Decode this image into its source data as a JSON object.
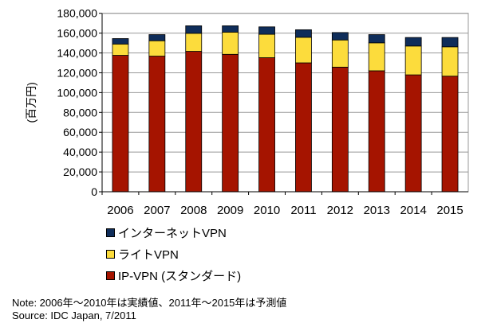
{
  "chart_data": {
    "type": "bar",
    "stacked": true,
    "categories": [
      "2006",
      "2007",
      "2008",
      "2009",
      "2010",
      "2011",
      "2012",
      "2013",
      "2014",
      "2015"
    ],
    "series": [
      {
        "name": "IP-VPN (スタンダード)",
        "color": "#A51400",
        "values": [
          137600,
          136800,
          141600,
          138600,
          135200,
          130000,
          125700,
          122000,
          117900,
          116600
        ]
      },
      {
        "name": "ライトVPN",
        "color": "#FCDC3C",
        "values": [
          11400,
          15500,
          18200,
          22400,
          23600,
          25800,
          27400,
          28200,
          29100,
          29600
        ]
      },
      {
        "name": "インターネットVPN",
        "color": "#0F2D5A",
        "values": [
          5500,
          6200,
          7600,
          6400,
          7500,
          7600,
          7500,
          8300,
          8600,
          9400
        ]
      }
    ],
    "ylabel": "(百万円)",
    "ylim": [
      0,
      180000
    ],
    "yticks": [
      "0",
      "20,000",
      "40,000",
      "60,000",
      "80,000",
      "100,000",
      "120,000",
      "140,000",
      "160,000",
      "180,000"
    ],
    "grid": true,
    "legend_placement": "bottom-left"
  },
  "legend": [
    "インターネットVPN",
    "ライトVPN",
    "IP-VPN (スタンダード)"
  ],
  "note": "Note: 2006年～2010年は実績値、2011年～2015年は予測値",
  "source": "Source: IDC Japan, 7/2011"
}
